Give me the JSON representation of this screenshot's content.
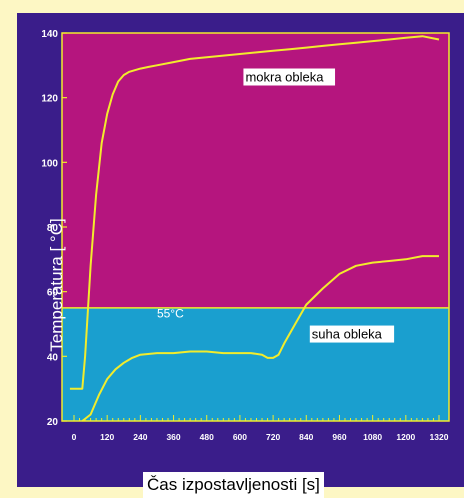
{
  "chart_data": {
    "type": "line",
    "title": "",
    "xlabel": "Čas izpostavljenosti [s]",
    "ylabel": "Temperatura [ °C]",
    "xlim": [
      0,
      1320
    ],
    "ylim": [
      20,
      140
    ],
    "xticks": [
      "0",
      "120",
      "240",
      "360",
      "480",
      "600",
      "720",
      "840",
      "960",
      "1080",
      "1200",
      "1320"
    ],
    "yticks": [
      "20",
      "40",
      "60",
      "80",
      "100",
      "120",
      "140"
    ],
    "grid": false,
    "threshold": {
      "value": 55,
      "label": "55°C"
    },
    "colors": {
      "background": "#b5157e",
      "below_threshold": "#1a9fcf",
      "line": "#f2ec2c",
      "frame": "#3a1d8a"
    },
    "series": [
      {
        "name": "mokra obleka",
        "x": [
          -15,
          30,
          40,
          60,
          80,
          100,
          120,
          140,
          160,
          180,
          200,
          220,
          240,
          270,
          300,
          360,
          420,
          480,
          540,
          600,
          660,
          720,
          780,
          840,
          900,
          960,
          1020,
          1080,
          1140,
          1200,
          1260,
          1320
        ],
        "y": [
          30,
          30,
          40,
          68,
          90,
          106,
          115,
          121,
          125,
          127,
          128,
          128.5,
          129,
          129.5,
          130,
          131,
          132,
          132.5,
          133,
          133.5,
          134,
          134.5,
          135,
          135.5,
          136,
          136.5,
          137,
          137.5,
          138,
          138.5,
          139,
          138
        ]
      },
      {
        "name": "suha obleka",
        "x": [
          30,
          60,
          90,
          120,
          150,
          180,
          210,
          240,
          300,
          360,
          420,
          480,
          540,
          600,
          640,
          680,
          700,
          720,
          740,
          760,
          800,
          840,
          900,
          960,
          1020,
          1080,
          1140,
          1200,
          1260,
          1320
        ],
        "y": [
          20,
          22,
          28,
          33,
          36,
          38,
          39.5,
          40.5,
          41,
          41,
          41.5,
          41.5,
          41,
          41,
          41,
          40.5,
          39.5,
          39.5,
          40.5,
          44,
          50,
          56,
          61,
          65.5,
          68,
          69,
          69.5,
          70,
          71,
          71
        ]
      }
    ],
    "annotations": [
      {
        "text": "mokra obleka",
        "x": 620,
        "y": 125
      },
      {
        "text": "suha obleka",
        "x": 860,
        "y": 45.5
      },
      {
        "text": "55°C",
        "x": 300,
        "y": 52
      }
    ]
  }
}
